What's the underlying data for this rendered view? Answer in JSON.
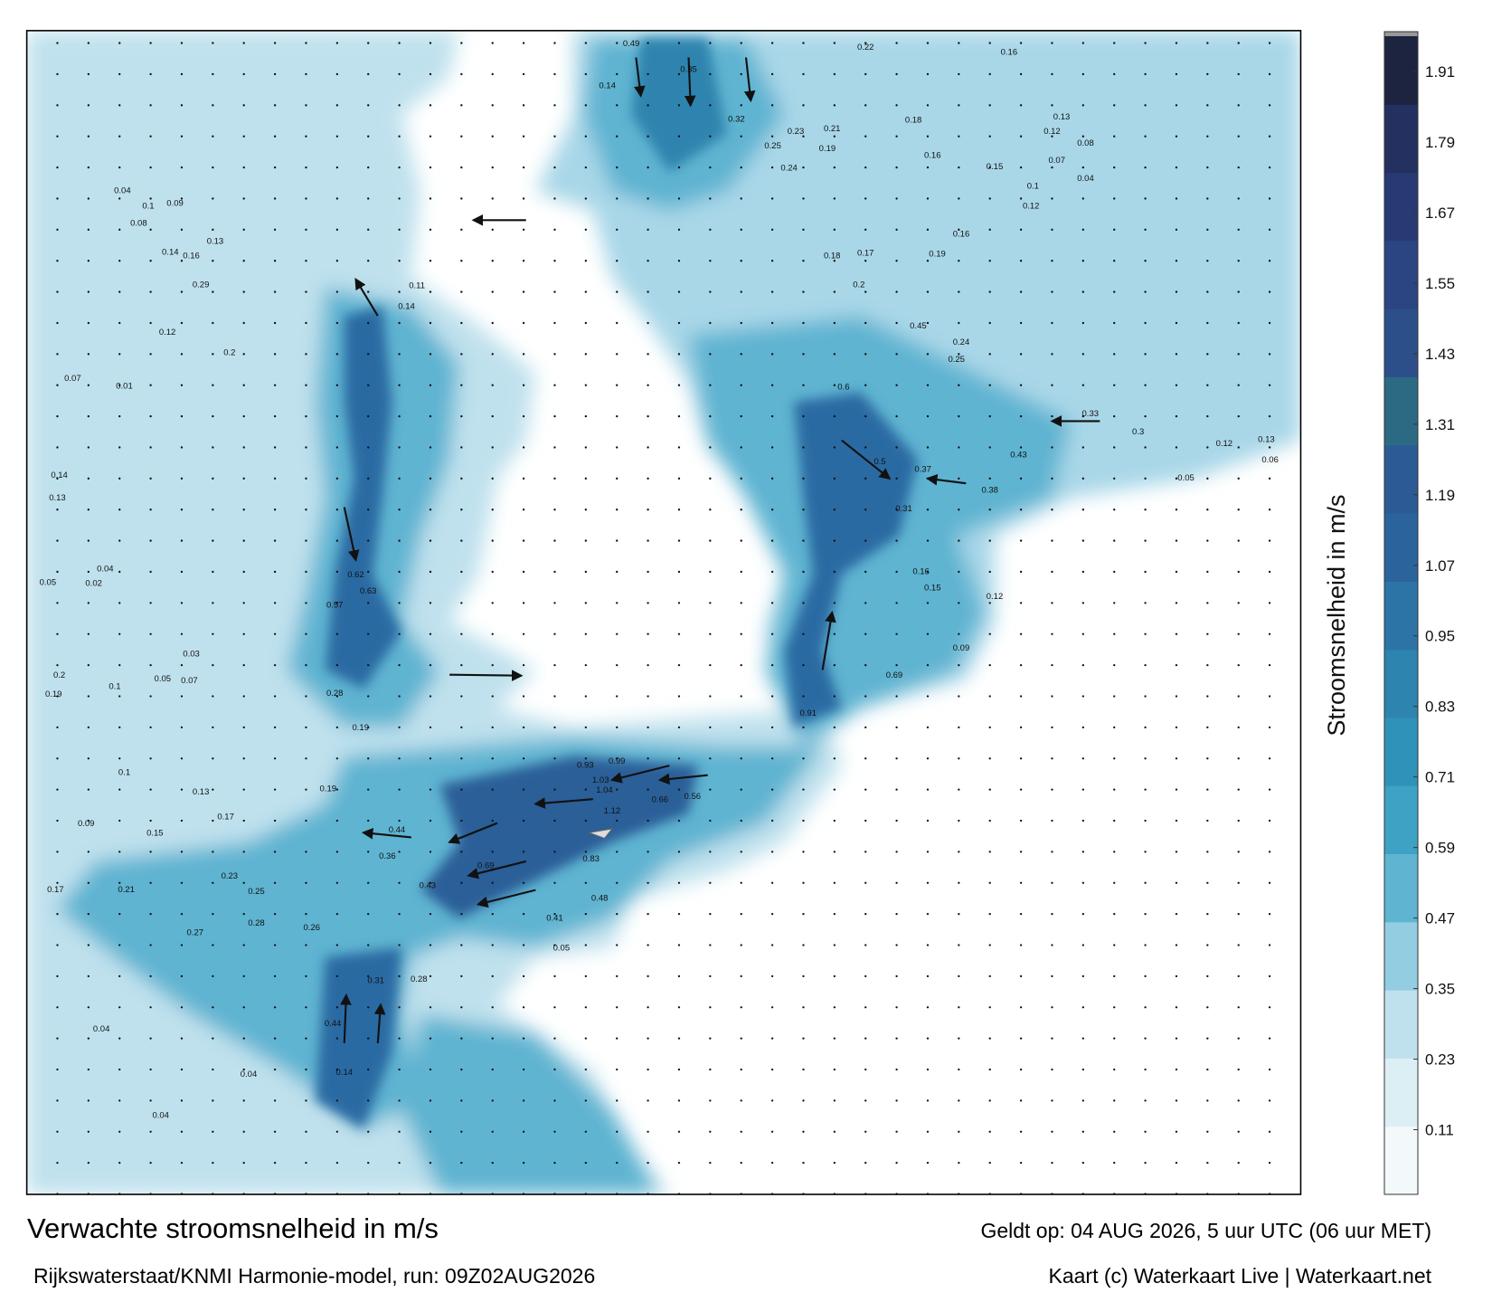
{
  "header": {
    "title": "Verwachte stroomsnelheid in m/s",
    "subtitle": "Rijkswaterstaat/KNMI Harmonie-model, run: 09Z02AUG2026",
    "valid": "Geldt op: 04 AUG 2026, 5 uur UTC (06 uur MET)",
    "credit": "Kaart (c) Waterkaart Live | Waterkaart.net"
  },
  "colorbar": {
    "label": "Stroomsnelheid in m/s",
    "lim": [
      0,
      1.97
    ],
    "ticks": [
      0.11,
      0.23,
      0.35,
      0.47,
      0.59,
      0.71,
      0.83,
      0.95,
      1.07,
      1.19,
      1.31,
      1.43,
      1.55,
      1.67,
      1.79,
      1.91
    ],
    "colors": [
      "#f3f9fb",
      "#dcefF5",
      "#bfe1ed",
      "#93cde1",
      "#5fb4d1",
      "#3da2c4",
      "#2f93b9",
      "#2d84ae",
      "#2c74a6",
      "#2b649c",
      "#2c5a94",
      "#2c6a84",
      "#2c4f8a",
      "#2b4482",
      "#283a74",
      "#24305f",
      "#1c2440"
    ]
  },
  "map": {
    "labels": [
      0.49,
      0.35,
      0.22,
      0.16,
      0.14,
      0.32,
      0.23,
      0.21,
      0.19,
      0.25,
      0.24,
      0.18,
      0.13,
      0.12,
      0.08,
      0.16,
      0.15,
      0.07,
      0.04,
      0.1,
      0.12,
      0.18,
      0.17,
      0.19,
      0.16,
      0.2,
      0.45,
      0.24,
      0.25,
      0.6,
      0.33,
      0.43,
      0.3,
      0.5,
      0.37,
      0.38,
      0.31,
      0.16,
      0.15,
      0.12,
      0.09,
      0.69,
      0.91,
      0.99,
      0.93,
      1.03,
      1.04,
      1.12,
      0.66,
      0.56,
      0.44,
      0.36,
      0.69,
      0.43,
      0.83,
      0.48,
      0.41,
      0.05,
      0.28,
      0.31,
      0.44,
      0.14,
      0.04,
      0.04,
      0.04,
      0.17,
      0.21,
      0.27,
      0.28,
      0.26,
      0.23,
      0.25,
      0.1,
      0.13,
      0.17,
      0.15,
      0.09,
      0.19,
      0.28,
      0.19,
      0.62,
      0.63,
      0.57,
      0.2,
      0.19,
      0.1,
      0.03,
      0.07,
      0.05,
      0.14,
      0.13,
      0.04,
      0.05,
      0.02,
      0.12,
      0.07,
      0.01,
      0.04,
      0.1,
      0.09,
      0.08,
      0.13,
      0.14,
      0.16,
      0.29,
      0.2,
      0.14,
      0.11,
      0.12,
      0.05,
      0.13,
      0.06
    ]
  }
}
